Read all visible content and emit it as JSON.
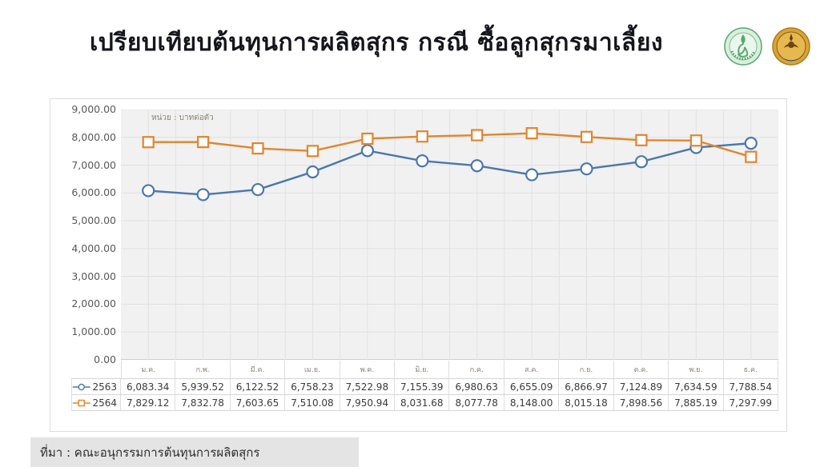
{
  "title": "เปรียบเทียบต้นทุนการผลิตสุกร กรณี ซื้อลูกสุกรมาเลี้ยง",
  "logos": {
    "left": "ministry-of-agriculture-and-cooperatives-seal",
    "right": "department-of-livestock-development-seal"
  },
  "source_note": "ที่มา : คณะอนุกรรมการต้นทุนการผลิตสุกร",
  "chart_data": {
    "type": "line",
    "title": "เปรียบเทียบต้นทุนการผลิตสุกร กรณี ซื้อลูกสุกรมาเลี้ยง",
    "unit_label": "หน่วย : บาทต่อตัว",
    "categories": [
      "ม.ค.",
      "ก.พ.",
      "มี.ค.",
      "เม.ย.",
      "พ.ค.",
      "มิ.ย.",
      "ก.ค.",
      "ส.ค.",
      "ก.ย.",
      "ต.ค.",
      "พ.ย.",
      "ธ.ค."
    ],
    "series": [
      {
        "name": "2563",
        "color": "#4a77ad",
        "marker": "circle",
        "values": [
          6083.34,
          5939.52,
          6122.52,
          6758.23,
          7522.98,
          7155.39,
          6980.63,
          6655.09,
          6866.97,
          7124.89,
          7634.59,
          7788.54
        ]
      },
      {
        "name": "2564",
        "color": "#e0862f",
        "marker": "square",
        "values": [
          7829.12,
          7832.78,
          7603.65,
          7510.08,
          7950.94,
          8031.68,
          8077.78,
          8148.0,
          8015.18,
          7898.56,
          7885.19,
          7297.99
        ]
      }
    ],
    "ylim": [
      0,
      9000
    ],
    "ytick_step": 1000,
    "grid": true,
    "legend_position": "table-left",
    "data_table": true,
    "plot_background": "#f1f1f1",
    "gridline_color": "#e2e2e2"
  }
}
